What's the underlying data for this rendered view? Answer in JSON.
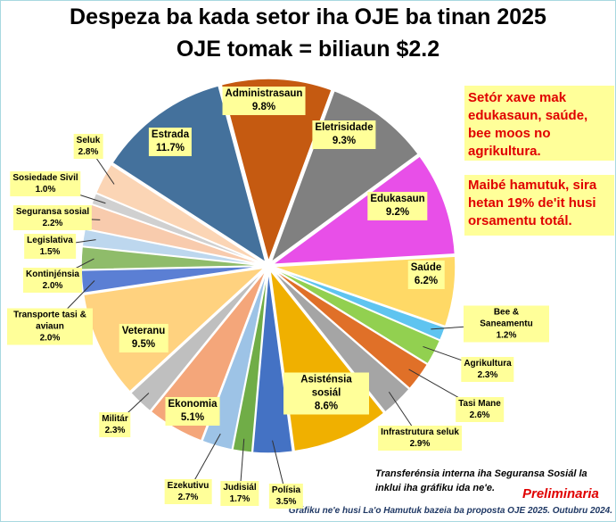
{
  "chart_data": {
    "type": "pie",
    "title": "Despeza ba kada setor iha OJE ba tinan 2025",
    "subtitle": "OJE tomak = biliaun $2.2",
    "categories": [
      "Administrasaun",
      "Eletrisidade",
      "Edukasaun",
      "Saúde",
      "Bee & Saneamentu",
      "Agrikultura",
      "Tasi Mane",
      "Infrastrutura seluk",
      "Asisténsia sosiál",
      "Polísia",
      "Judisiál",
      "Ezekutivu",
      "Ekonomia",
      "Militár",
      "Veteranu",
      "Transporte tasi & aviaun",
      "Kontinjénsia",
      "Legislativa",
      "Seguransa sosial",
      "Sosiedade Sivil",
      "Seluk",
      "Estrada"
    ],
    "values": [
      9.8,
      9.3,
      9.2,
      6.2,
      1.2,
      2.3,
      2.6,
      2.9,
      8.6,
      3.5,
      1.7,
      2.7,
      5.1,
      2.3,
      9.5,
      2.0,
      2.0,
      1.5,
      2.2,
      1.0,
      2.8,
      11.7
    ],
    "value_labels": [
      "9.8%",
      "9.3%",
      "9.2%",
      "6.2%",
      "1.2%",
      "2.3%",
      "2.6%",
      "2.9%",
      "8.6%",
      "3.5%",
      "1.7%",
      "2.7%",
      "5.1%",
      "2.3%",
      "9.5%",
      "2.0%",
      "2.0%",
      "1.5%",
      "2.2%",
      "1.0%",
      "2.8%",
      "11.7%"
    ],
    "colors": [
      "#c55a11",
      "#808080",
      "#e84fe8",
      "#ffd966",
      "#5fc4f0",
      "#92d050",
      "#e07028",
      "#a5a5a5",
      "#f0b000",
      "#4472c4",
      "#70ad47",
      "#9dc3e6",
      "#f4a67a",
      "#bfbfbf",
      "#ffd27f",
      "#5b7fd4",
      "#8fbc6a",
      "#bdd7ee",
      "#f8cbad",
      "#d0d0d0",
      "#fbd5b5",
      "#44719c"
    ],
    "annotations": [
      "Setór xave mak edukasaun, saúde, bee moos no agrikultura.",
      "Maibé hamutuk, sira hetan 19% de'it husi orsamentu totál.",
      "Transferénsia interna iha Seguransa Sosiál la inklui iha gráfiku ida ne'e.",
      "Preliminaria",
      "Gráfiku ne'e husi La'o Hamutuk bazeia ba proposta OJE 2025. Outubru 2024."
    ]
  }
}
